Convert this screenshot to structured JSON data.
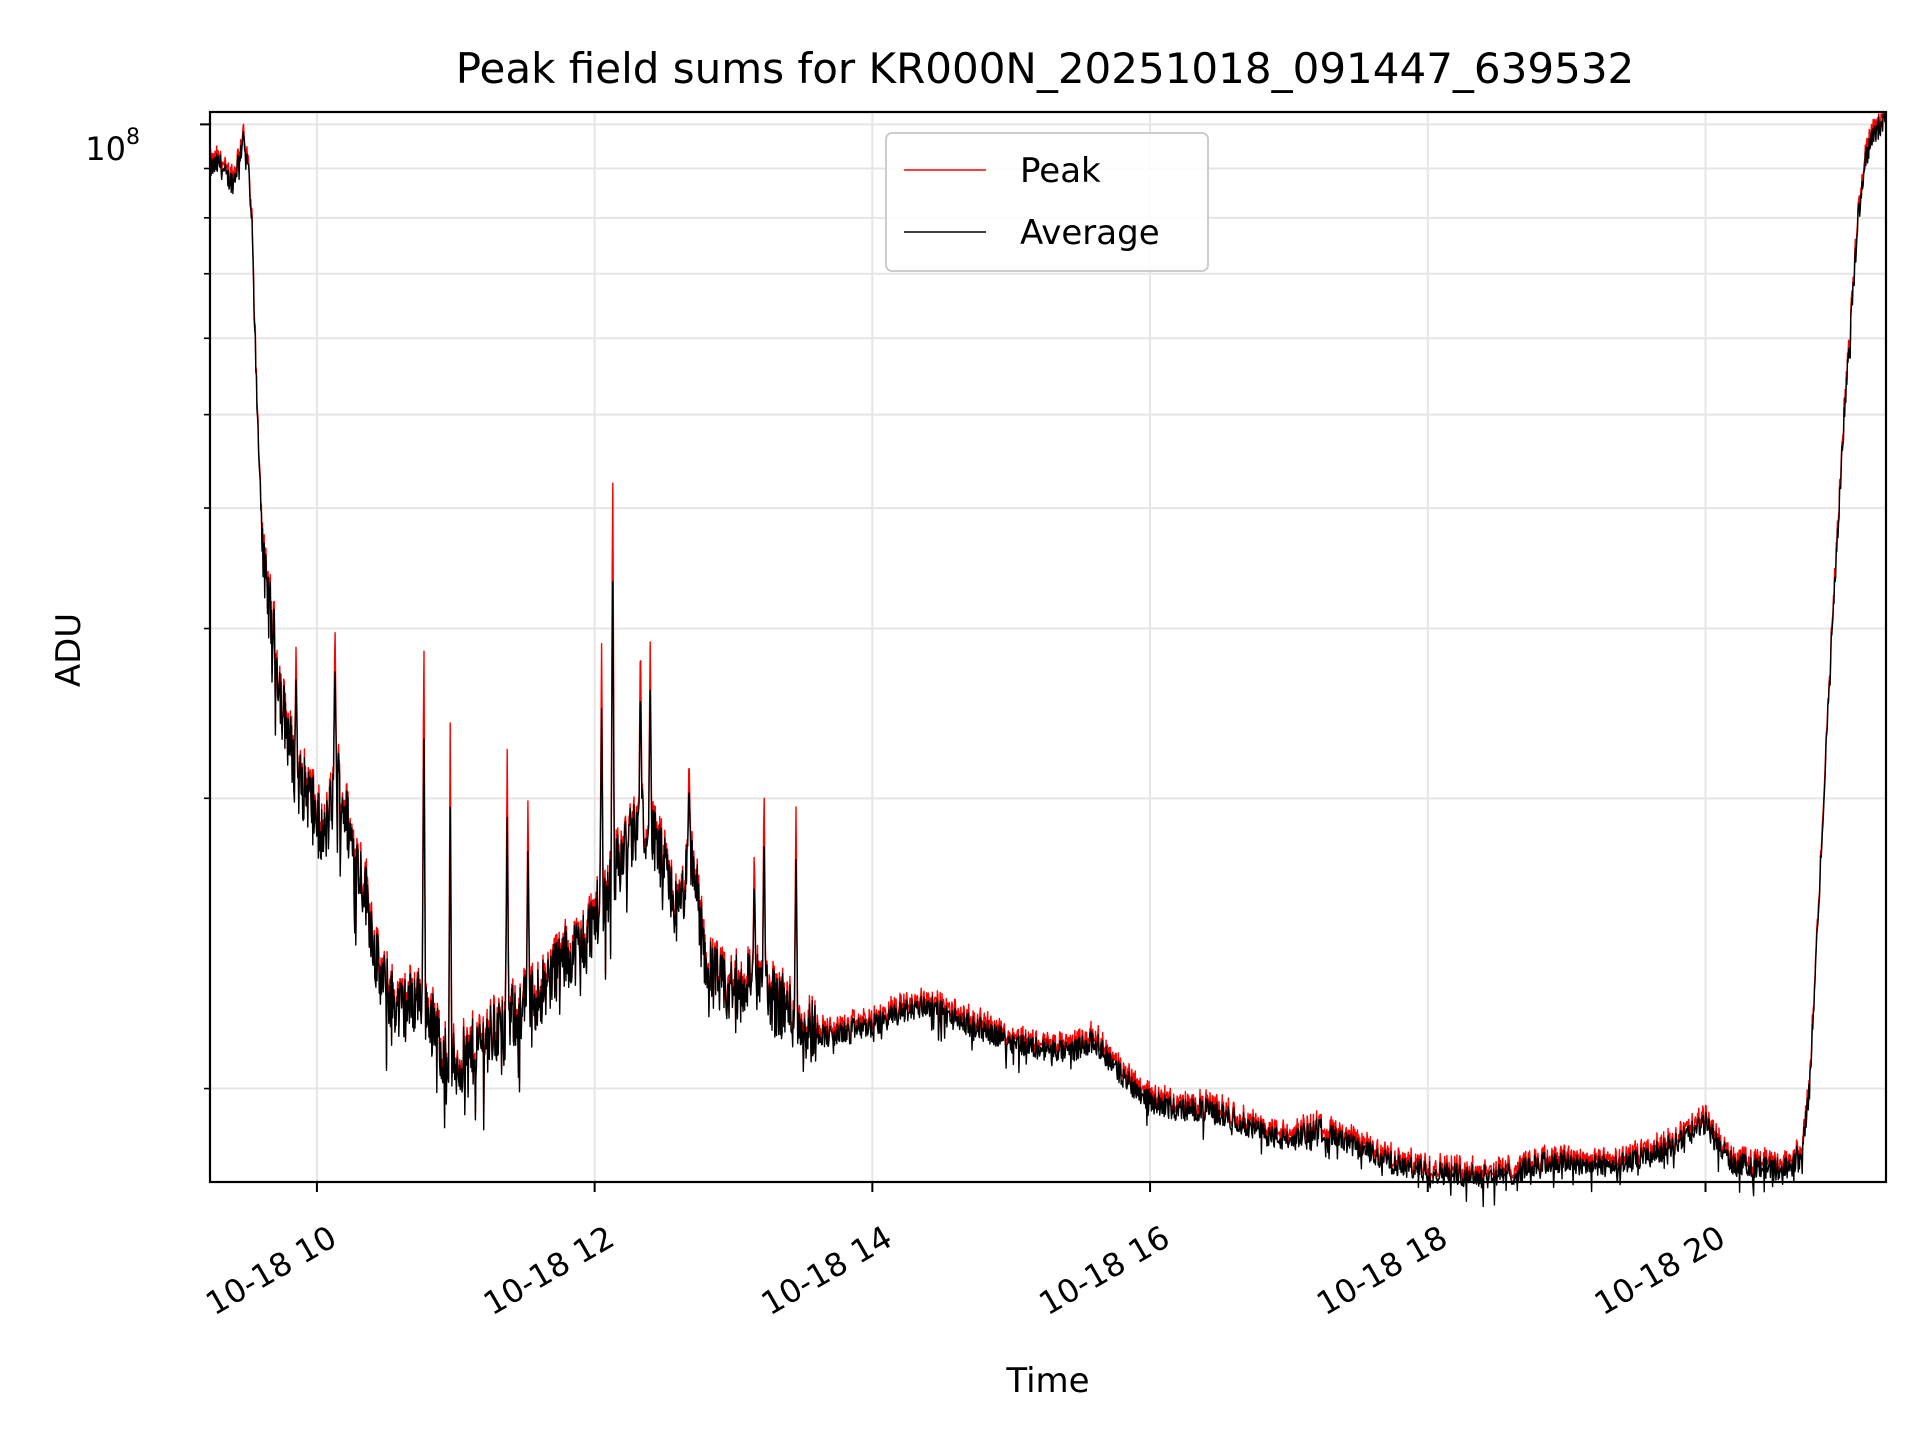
{
  "chart_data": {
    "type": "line",
    "title": "Peak field sums for KR000N_20251018_091447_639532",
    "xlabel": "Time",
    "ylabel": "ADU",
    "yscale": "log",
    "ylim": [
      8000000,
      103000000
    ],
    "xlim_hours": [
      9.23,
      21.3
    ],
    "grid": true,
    "grid_minor": true,
    "legend_position": "top-center",
    "x_ticks": [
      {
        "hour": 10,
        "label": "10-18 10"
      },
      {
        "hour": 12,
        "label": "10-18 12"
      },
      {
        "hour": 14,
        "label": "10-18 14"
      },
      {
        "hour": 16,
        "label": "10-18 16"
      },
      {
        "hour": 18,
        "label": "10-18 18"
      },
      {
        "hour": 20,
        "label": "10-18 20"
      }
    ],
    "y_major_ticks": [
      {
        "value": 100000000,
        "base": "10",
        "exponent": "8"
      }
    ],
    "y_minor_ticks": [
      10000000,
      20000000,
      30000000,
      40000000,
      50000000,
      60000000,
      70000000,
      80000000,
      90000000
    ],
    "series": [
      {
        "name": "Peak",
        "color": "#ff0000"
      },
      {
        "name": "Average",
        "color": "#000000"
      }
    ],
    "average_profile": [
      [
        9.23,
        90000000
      ],
      [
        9.3,
        91000000
      ],
      [
        9.35,
        88000000
      ],
      [
        9.4,
        87000000
      ],
      [
        9.45,
        94000000
      ],
      [
        9.5,
        92000000
      ],
      [
        9.53,
        80000000
      ],
      [
        9.57,
        50000000
      ],
      [
        9.62,
        34000000
      ],
      [
        9.68,
        30000000
      ],
      [
        9.75,
        25000000
      ],
      [
        9.85,
        21000000
      ],
      [
        9.95,
        20000000
      ],
      [
        10.05,
        18000000
      ],
      [
        10.15,
        21000000
      ],
      [
        10.25,
        18000000
      ],
      [
        10.35,
        16000000
      ],
      [
        10.45,
        13000000
      ],
      [
        10.6,
        12000000
      ],
      [
        10.75,
        12500000
      ],
      [
        10.9,
        11000000
      ],
      [
        11.0,
        10500000
      ],
      [
        11.15,
        11000000
      ],
      [
        11.3,
        11500000
      ],
      [
        11.45,
        12000000
      ],
      [
        11.6,
        12500000
      ],
      [
        11.75,
        13500000
      ],
      [
        11.9,
        14000000
      ],
      [
        12.05,
        15500000
      ],
      [
        12.2,
        17500000
      ],
      [
        12.35,
        19000000
      ],
      [
        12.5,
        17000000
      ],
      [
        12.6,
        15000000
      ],
      [
        12.7,
        17500000
      ],
      [
        12.8,
        13500000
      ],
      [
        12.95,
        12500000
      ],
      [
        13.1,
        13000000
      ],
      [
        13.25,
        12500000
      ],
      [
        13.4,
        12000000
      ],
      [
        13.55,
        11500000
      ],
      [
        13.7,
        11300000
      ],
      [
        13.85,
        11500000
      ],
      [
        14.0,
        11600000
      ],
      [
        14.2,
        12000000
      ],
      [
        14.4,
        12200000
      ],
      [
        14.6,
        11800000
      ],
      [
        14.8,
        11500000
      ],
      [
        15.0,
        11200000
      ],
      [
        15.2,
        11000000
      ],
      [
        15.4,
        10900000
      ],
      [
        15.6,
        11200000
      ],
      [
        15.8,
        10300000
      ],
      [
        16.0,
        9700000
      ],
      [
        16.2,
        9500000
      ],
      [
        16.4,
        9500000
      ],
      [
        16.6,
        9300000
      ],
      [
        16.8,
        9000000
      ],
      [
        17.0,
        8800000
      ],
      [
        17.2,
        9100000
      ],
      [
        17.4,
        8800000
      ],
      [
        17.6,
        8550000
      ],
      [
        17.8,
        8300000
      ],
      [
        18.0,
        8200000
      ],
      [
        18.2,
        8150000
      ],
      [
        18.4,
        8100000
      ],
      [
        18.6,
        8150000
      ],
      [
        18.8,
        8350000
      ],
      [
        19.0,
        8400000
      ],
      [
        19.2,
        8300000
      ],
      [
        19.4,
        8350000
      ],
      [
        19.6,
        8500000
      ],
      [
        19.8,
        8800000
      ],
      [
        20.0,
        9200000
      ],
      [
        20.1,
        8700000
      ],
      [
        20.2,
        8350000
      ],
      [
        20.4,
        8300000
      ],
      [
        20.5,
        8250000
      ],
      [
        20.62,
        8300000
      ],
      [
        20.7,
        8700000
      ],
      [
        20.75,
        10000000
      ],
      [
        20.82,
        16000000
      ],
      [
        20.9,
        28000000
      ],
      [
        21.0,
        50000000
      ],
      [
        21.1,
        80000000
      ],
      [
        21.15,
        92000000
      ],
      [
        21.2,
        97000000
      ],
      [
        21.3,
        102000000
      ]
    ],
    "peak_spikes": [
      [
        9.47,
        101000000
      ],
      [
        9.85,
        29000000
      ],
      [
        10.13,
        31000000
      ],
      [
        10.77,
        30500000
      ],
      [
        10.96,
        24000000
      ],
      [
        11.37,
        23000000
      ],
      [
        11.52,
        20500000
      ],
      [
        12.05,
        29500000
      ],
      [
        12.13,
        45500000
      ],
      [
        12.33,
        30000000
      ],
      [
        12.4,
        29500000
      ],
      [
        12.68,
        22500000
      ],
      [
        13.15,
        18000000
      ],
      [
        13.22,
        21000000
      ],
      [
        13.45,
        20000000
      ]
    ]
  }
}
